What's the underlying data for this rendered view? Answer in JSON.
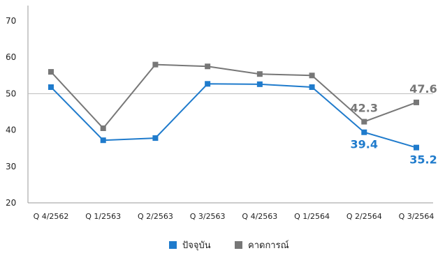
{
  "chart_data": {
    "type": "line",
    "categories": [
      "Q 4/2562",
      "Q 1/2563",
      "Q 2/2563",
      "Q 3/2563",
      "Q 4/2563",
      "Q 1/2564",
      "Q 2/2564",
      "Q 3/2564"
    ],
    "ylim": [
      20,
      70
    ],
    "yticks": [
      20,
      30,
      40,
      50,
      60,
      70
    ],
    "reference_line": 50,
    "grid": false,
    "legend_position": "bottom",
    "series": [
      {
        "name": "ปัจจุบัน",
        "color": "#1f7bcc",
        "values": [
          51.8,
          37.2,
          37.8,
          52.7,
          52.6,
          51.8,
          39.4,
          35.2
        ]
      },
      {
        "name": "คาดการณ์",
        "color": "#777777",
        "values": [
          56.0,
          40.5,
          58.0,
          57.5,
          55.4,
          55.0,
          42.3,
          47.6
        ]
      }
    ],
    "data_labels": [
      {
        "series": 0,
        "index": 6,
        "text": "39.4"
      },
      {
        "series": 0,
        "index": 7,
        "text": "35.2"
      },
      {
        "series": 1,
        "index": 6,
        "text": "42.3"
      },
      {
        "series": 1,
        "index": 7,
        "text": "47.6"
      }
    ]
  }
}
